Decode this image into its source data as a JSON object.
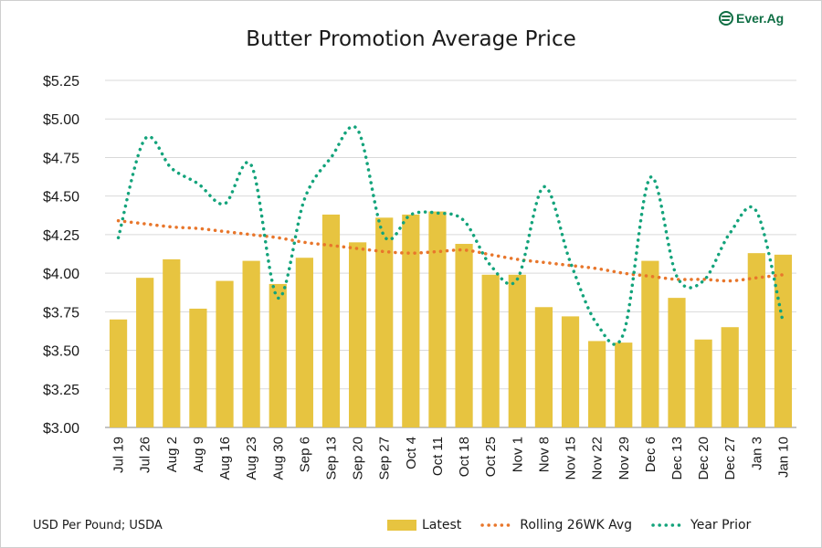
{
  "brand": {
    "name": "Ever.Ag",
    "color": "#0f6e44"
  },
  "footnote": "USD Per Pound; USDA",
  "chart_data": {
    "type": "bar",
    "title": "Butter Promotion Average Price",
    "xlabel": "",
    "ylabel": "",
    "ylim": [
      3.0,
      5.25
    ],
    "yticks": [
      3.0,
      3.25,
      3.5,
      3.75,
      4.0,
      4.25,
      4.5,
      4.75,
      5.0,
      5.25
    ],
    "ytick_labels": [
      "$3.00",
      "$3.25",
      "$3.50",
      "$3.75",
      "$4.00",
      "$4.25",
      "$4.50",
      "$4.75",
      "$5.00",
      "$5.25"
    ],
    "grid": true,
    "legend_position": "bottom",
    "categories": [
      "Jul 19",
      "Jul 26",
      "Aug 2",
      "Aug 9",
      "Aug 16",
      "Aug 23",
      "Aug 30",
      "Sep 6",
      "Sep 13",
      "Sep 20",
      "Sep 27",
      "Oct 4",
      "Oct 11",
      "Oct 18",
      "Oct 25",
      "Nov 1",
      "Nov 8",
      "Nov 15",
      "Nov 22",
      "Nov 29",
      "Dec 6",
      "Dec 13",
      "Dec 20",
      "Dec 27",
      "Jan 3",
      "Jan 10"
    ],
    "series": [
      {
        "name": "Latest",
        "type": "bar",
        "color": "#e7c440",
        "values": [
          3.7,
          3.97,
          4.09,
          3.77,
          3.95,
          4.08,
          3.93,
          4.1,
          4.38,
          4.2,
          4.36,
          4.38,
          4.4,
          4.19,
          3.99,
          3.99,
          3.78,
          3.72,
          3.56,
          3.55,
          4.08,
          3.84,
          3.57,
          3.65,
          4.13,
          4.12
        ]
      },
      {
        "name": "Rolling 26WK Avg",
        "type": "line",
        "style": "dotted",
        "color": "#e8762b",
        "values": [
          4.34,
          4.32,
          4.3,
          4.29,
          4.27,
          4.25,
          4.23,
          4.2,
          4.18,
          4.16,
          4.14,
          4.13,
          4.14,
          4.15,
          4.12,
          4.09,
          4.07,
          4.05,
          4.03,
          4.0,
          3.98,
          3.96,
          3.96,
          3.95,
          3.97,
          3.99
        ]
      },
      {
        "name": "Year Prior",
        "type": "line",
        "style": "dotted",
        "color": "#13a37b",
        "values": [
          4.23,
          4.87,
          4.68,
          4.58,
          4.45,
          4.7,
          3.84,
          4.48,
          4.75,
          4.93,
          4.24,
          4.38,
          4.39,
          4.34,
          4.05,
          3.96,
          4.56,
          4.07,
          3.67,
          3.61,
          4.62,
          3.98,
          3.95,
          4.26,
          4.4,
          3.68
        ]
      }
    ]
  }
}
